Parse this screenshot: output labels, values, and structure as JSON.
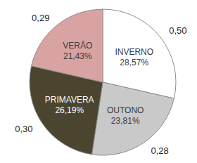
{
  "chart_data": {
    "type": "pie",
    "categories": [
      "INVERNO",
      "OUTONO",
      "PRIMAVERA",
      "VERÃO"
    ],
    "values": [
      28.57,
      23.81,
      26.19,
      21.43
    ],
    "value_labels": [
      "28,57%",
      "23,81%",
      "26,19%",
      "21,43%"
    ],
    "annotations": [
      "0,50",
      "0,28",
      "0,30",
      "0,29"
    ],
    "colors": [
      "#ffffff",
      "#c9c9c9",
      "#4b4530",
      "#d9a3a3"
    ],
    "data_labels": true
  }
}
